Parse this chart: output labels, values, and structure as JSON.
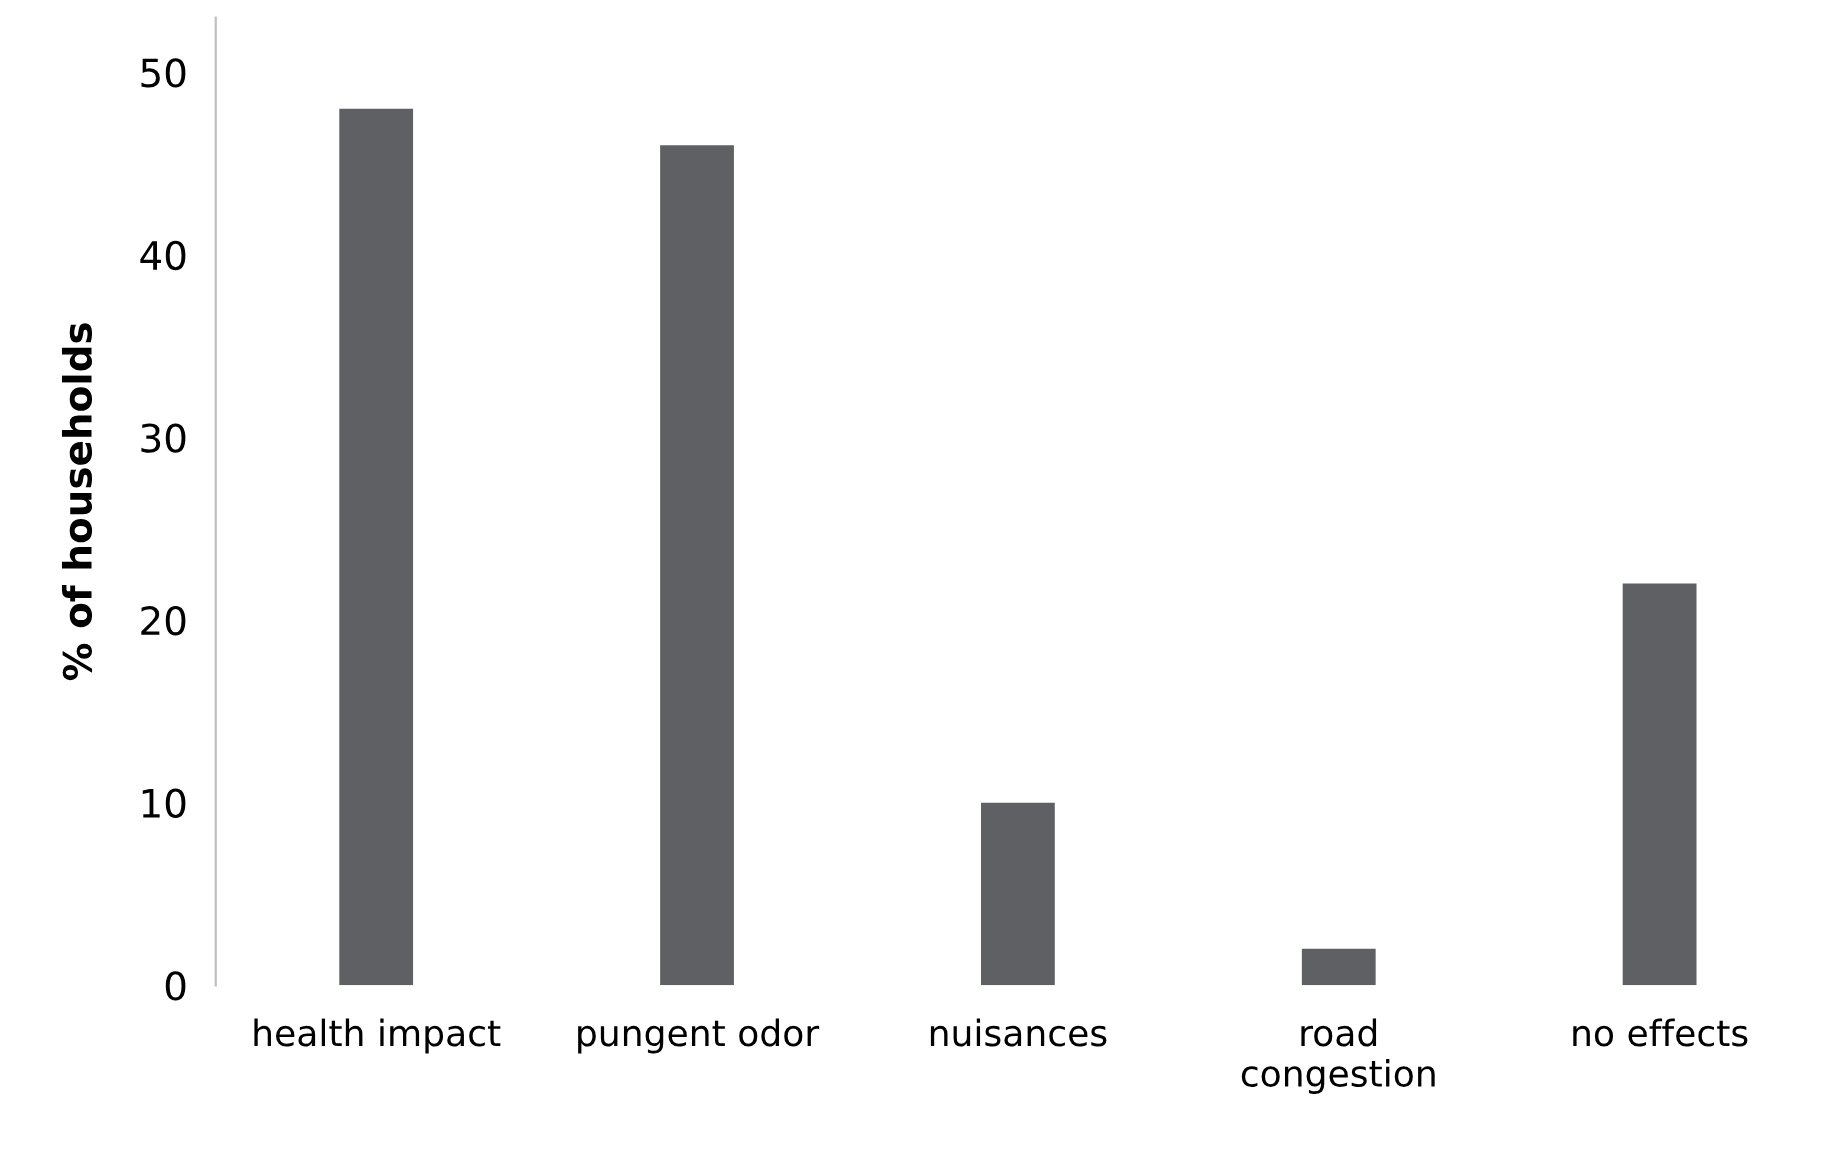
{
  "chart_data": {
    "type": "bar",
    "ylabel": "% of households",
    "categories": [
      "health impact",
      "pungent odor",
      "nuisances",
      "road\ncongestion",
      "no effects"
    ],
    "values": [
      48,
      46,
      10,
      2,
      22
    ],
    "color": "#5f6064",
    "ylim": [
      0,
      53
    ],
    "yticks": [
      0,
      10,
      20,
      30,
      40,
      50
    ],
    "grid": false,
    "legend": false
  }
}
